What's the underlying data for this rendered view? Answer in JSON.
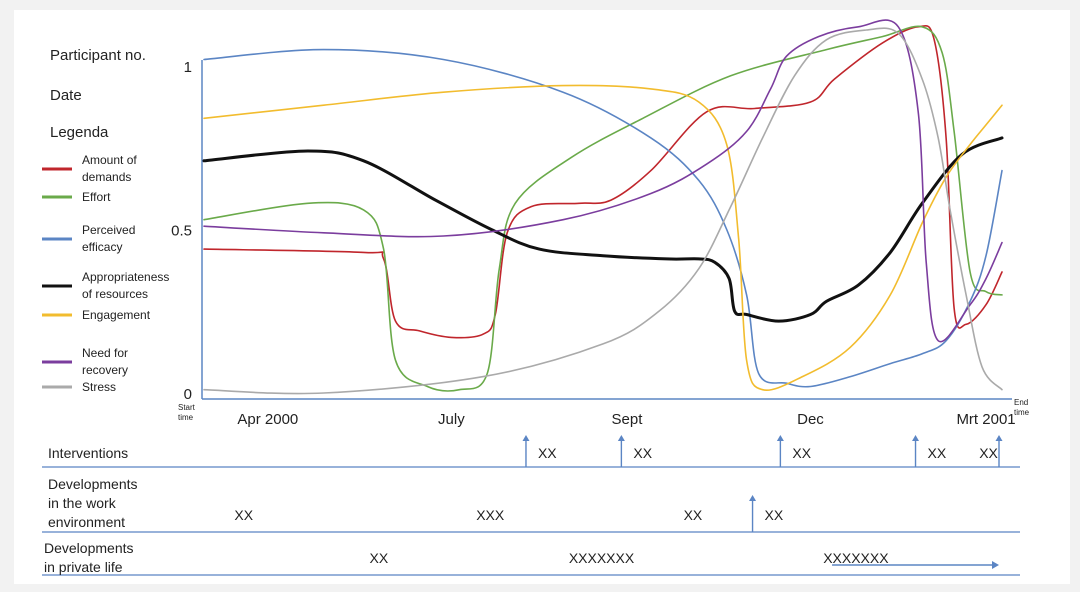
{
  "meta_labels": {
    "participant": "Participant no.",
    "date": "Date",
    "legend_title": "Legenda"
  },
  "chart_data": {
    "type": "line",
    "x_start_label": "Start time",
    "x_end_label": "End time",
    "x_ticks": [
      "Apr 2000",
      "July",
      "Sept",
      "Dec",
      "Mrt 2001"
    ],
    "x_tick_positions": [
      0.08,
      0.31,
      0.53,
      0.76,
      0.98
    ],
    "y_ticks": [
      "0",
      "0.5",
      "1"
    ],
    "y_tick_values": [
      0,
      0.5,
      1
    ],
    "xlim": [
      0,
      1
    ],
    "ylim": [
      0,
      1
    ],
    "legend_placement": "left",
    "series": [
      {
        "name": "Amount of demands",
        "color": "#c0262c",
        "points": [
          [
            0,
            0.44
          ],
          [
            0.2,
            0.43
          ],
          [
            0.225,
            0.41
          ],
          [
            0.24,
            0.22
          ],
          [
            0.27,
            0.19
          ],
          [
            0.31,
            0.17
          ],
          [
            0.35,
            0.18
          ],
          [
            0.365,
            0.24
          ],
          [
            0.38,
            0.49
          ],
          [
            0.41,
            0.57
          ],
          [
            0.47,
            0.58
          ],
          [
            0.51,
            0.59
          ],
          [
            0.56,
            0.68
          ],
          [
            0.63,
            0.86
          ],
          [
            0.69,
            0.87
          ],
          [
            0.76,
            0.89
          ],
          [
            0.79,
            0.96
          ],
          [
            0.85,
            1.07
          ],
          [
            0.895,
            1.12
          ],
          [
            0.915,
            1.08
          ],
          [
            0.93,
            0.78
          ],
          [
            0.94,
            0.26
          ],
          [
            0.955,
            0.21
          ],
          [
            0.98,
            0.27
          ],
          [
            1,
            0.37
          ]
        ]
      },
      {
        "name": "Effort",
        "color": "#6aaa4a",
        "points": [
          [
            0,
            0.53
          ],
          [
            0.13,
            0.58
          ],
          [
            0.2,
            0.56
          ],
          [
            0.225,
            0.44
          ],
          [
            0.24,
            0.1
          ],
          [
            0.28,
            0.02
          ],
          [
            0.32,
            0.01
          ],
          [
            0.355,
            0.06
          ],
          [
            0.37,
            0.38
          ],
          [
            0.39,
            0.58
          ],
          [
            0.46,
            0.72
          ],
          [
            0.55,
            0.84
          ],
          [
            0.66,
            0.97
          ],
          [
            0.78,
            1.05
          ],
          [
            0.85,
            1.09
          ],
          [
            0.9,
            1.12
          ],
          [
            0.925,
            1.04
          ],
          [
            0.94,
            0.8
          ],
          [
            0.96,
            0.37
          ],
          [
            0.98,
            0.31
          ],
          [
            1,
            0.3
          ]
        ]
      },
      {
        "name": "Perceived efficacy",
        "color": "#5b85c4",
        "points": [
          [
            0,
            1.02
          ],
          [
            0.15,
            1.05
          ],
          [
            0.3,
            1.02
          ],
          [
            0.45,
            0.92
          ],
          [
            0.56,
            0.78
          ],
          [
            0.62,
            0.65
          ],
          [
            0.655,
            0.5
          ],
          [
            0.68,
            0.3
          ],
          [
            0.695,
            0.06
          ],
          [
            0.73,
            0.03
          ],
          [
            0.76,
            0.02
          ],
          [
            0.81,
            0.05
          ],
          [
            0.86,
            0.09
          ],
          [
            0.9,
            0.12
          ],
          [
            0.93,
            0.16
          ],
          [
            0.96,
            0.28
          ],
          [
            0.98,
            0.42
          ],
          [
            1,
            0.68
          ]
        ]
      },
      {
        "name": "Appropriateness of resources",
        "color": "#111111",
        "points": [
          [
            0,
            0.71
          ],
          [
            0.13,
            0.74
          ],
          [
            0.2,
            0.71
          ],
          [
            0.29,
            0.59
          ],
          [
            0.36,
            0.5
          ],
          [
            0.42,
            0.44
          ],
          [
            0.5,
            0.42
          ],
          [
            0.58,
            0.41
          ],
          [
            0.62,
            0.41
          ],
          [
            0.64,
            0.4
          ],
          [
            0.658,
            0.35
          ],
          [
            0.665,
            0.25
          ],
          [
            0.68,
            0.24
          ],
          [
            0.72,
            0.22
          ],
          [
            0.76,
            0.24
          ],
          [
            0.78,
            0.28
          ],
          [
            0.82,
            0.33
          ],
          [
            0.86,
            0.43
          ],
          [
            0.9,
            0.58
          ],
          [
            0.95,
            0.73
          ],
          [
            1,
            0.78
          ]
        ]
      },
      {
        "name": "Engagement",
        "color": "#f2bc2e",
        "points": [
          [
            0,
            0.84
          ],
          [
            0.15,
            0.88
          ],
          [
            0.3,
            0.92
          ],
          [
            0.45,
            0.94
          ],
          [
            0.56,
            0.93
          ],
          [
            0.62,
            0.89
          ],
          [
            0.655,
            0.76
          ],
          [
            0.67,
            0.47
          ],
          [
            0.68,
            0.1
          ],
          [
            0.7,
            0.01
          ],
          [
            0.75,
            0.05
          ],
          [
            0.81,
            0.14
          ],
          [
            0.86,
            0.3
          ],
          [
            0.9,
            0.52
          ],
          [
            0.93,
            0.66
          ],
          [
            0.96,
            0.76
          ],
          [
            0.98,
            0.82
          ],
          [
            1,
            0.88
          ]
        ]
      },
      {
        "name": "Need for recovery",
        "color": "#7b3d9e",
        "points": [
          [
            0,
            0.51
          ],
          [
            0.15,
            0.49
          ],
          [
            0.3,
            0.48
          ],
          [
            0.45,
            0.53
          ],
          [
            0.56,
            0.61
          ],
          [
            0.63,
            0.7
          ],
          [
            0.68,
            0.8
          ],
          [
            0.71,
            0.93
          ],
          [
            0.73,
            1.03
          ],
          [
            0.77,
            1.09
          ],
          [
            0.82,
            1.12
          ],
          [
            0.87,
            1.12
          ],
          [
            0.895,
            0.86
          ],
          [
            0.905,
            0.4
          ],
          [
            0.92,
            0.16
          ],
          [
            0.96,
            0.27
          ],
          [
            0.98,
            0.35
          ],
          [
            1,
            0.46
          ]
        ]
      },
      {
        "name": "Stress",
        "color": "#aaaaaa",
        "points": [
          [
            0,
            0.01
          ],
          [
            0.15,
            0.0
          ],
          [
            0.35,
            0.05
          ],
          [
            0.5,
            0.15
          ],
          [
            0.57,
            0.25
          ],
          [
            0.62,
            0.38
          ],
          [
            0.66,
            0.57
          ],
          [
            0.7,
            0.78
          ],
          [
            0.74,
            0.97
          ],
          [
            0.78,
            1.08
          ],
          [
            0.83,
            1.11
          ],
          [
            0.87,
            1.1
          ],
          [
            0.9,
            0.96
          ],
          [
            0.92,
            0.78
          ],
          [
            0.935,
            0.56
          ],
          [
            0.955,
            0.3
          ],
          [
            0.975,
            0.08
          ],
          [
            1,
            0.01
          ]
        ]
      }
    ]
  },
  "legend": [
    {
      "label": "Amount of demands",
      "lines": [
        "Amount of",
        "demands"
      ],
      "color": "#c0262c"
    },
    {
      "label": "Effort",
      "lines": [
        "Effort"
      ],
      "color": "#6aaa4a"
    },
    {
      "label": "Perceived efficacy",
      "lines": [
        "Perceived",
        "efficacy"
      ],
      "color": "#5b85c4"
    },
    {
      "label": "Appropriateness of resources",
      "lines": [
        "Appropriateness",
        "of resources"
      ],
      "color": "#111111"
    },
    {
      "label": "Engagement",
      "lines": [
        "Engagement"
      ],
      "color": "#f2bc2e"
    },
    {
      "label": "Need for recovery",
      "lines": [
        "Need for",
        "recovery"
      ],
      "color": "#7b3d9e"
    },
    {
      "label": "Stress",
      "lines": [
        "Stress"
      ],
      "color": "#aaaaaa"
    }
  ],
  "timeline": {
    "interventions": {
      "label": "Interventions",
      "items": [
        {
          "pos": 0.405,
          "arrow": true,
          "text": "XX"
        },
        {
          "pos": 0.525,
          "arrow": true,
          "text": "XX"
        },
        {
          "pos": 0.725,
          "arrow": true,
          "text": "XX"
        },
        {
          "pos": 0.895,
          "arrow": true,
          "text": "XX"
        },
        {
          "pos": 0.96,
          "arrow": false,
          "text": "XX"
        },
        {
          "pos": 1.0,
          "arrow": true,
          "text": ""
        }
      ]
    },
    "work_environment": {
      "label_lines": [
        "Developments",
        "in the work",
        "environment"
      ],
      "items": [
        {
          "pos": 0.05,
          "arrow": false,
          "text": "XX"
        },
        {
          "pos": 0.36,
          "arrow": false,
          "text": "XXX"
        },
        {
          "pos": 0.615,
          "arrow": false,
          "text": "XX"
        },
        {
          "pos": 0.69,
          "arrow": true,
          "text": "XX"
        }
      ]
    },
    "private_life": {
      "label_lines": [
        "Developments",
        "in private life"
      ],
      "items": [
        {
          "pos": 0.22,
          "text": "XX"
        },
        {
          "pos": 0.5,
          "text": "XXXXXXX"
        },
        {
          "pos": 0.82,
          "text": "XXXXXXX"
        }
      ],
      "range_arrow": {
        "from": 0.79,
        "to": 1.0
      }
    }
  }
}
